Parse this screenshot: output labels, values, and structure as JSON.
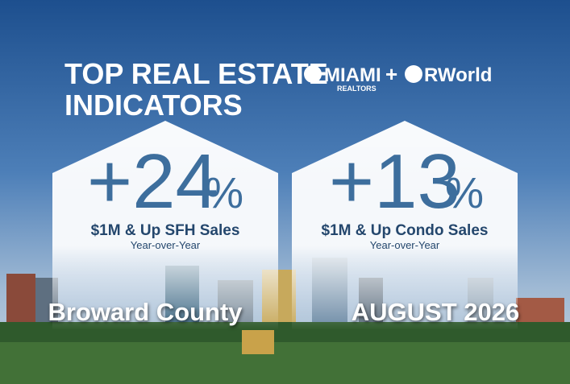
{
  "header": {
    "title_lines": [
      "TOP REAL ESTATE",
      "INDICATORS"
    ],
    "logo": {
      "left_main": "MIAMI",
      "left_sub": "REALTORS",
      "plus": "+",
      "right": "RWorld"
    }
  },
  "cards": [
    {
      "change": "+24",
      "unit": "%",
      "label": "$1M & Up SFH Sales",
      "period": "Year-over-Year",
      "footer": "Broward County"
    },
    {
      "change": "+13",
      "unit": "%",
      "label": "$1M & Up Condo Sales",
      "period": "Year-over-Year",
      "footer": "AUGUST 2026"
    }
  ]
}
